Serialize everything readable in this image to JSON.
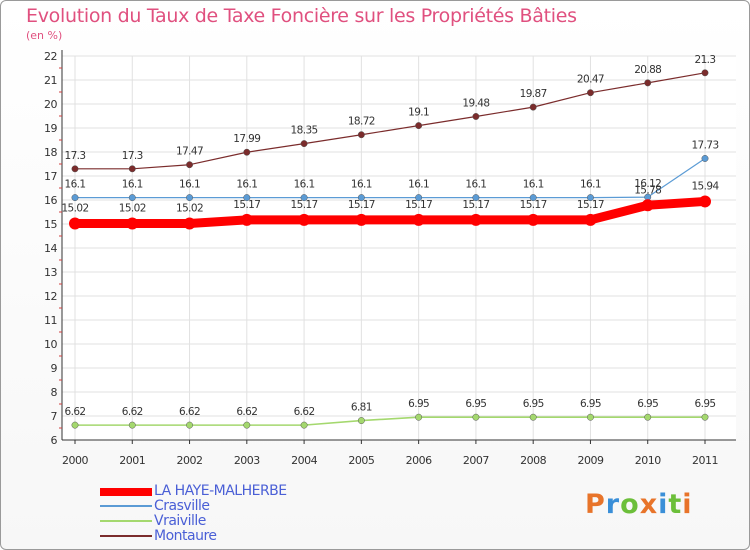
{
  "header": {
    "title": "Evolution du Taux de Taxe Foncière sur les Propriétés Bâties",
    "subtitle": "(en %)"
  },
  "logo": {
    "text": "Proxiti",
    "colors": [
      "#e8742a",
      "#3a8fd8",
      "#6cbf3a",
      "#e8742a",
      "#3a8fd8",
      "#6cbf3a",
      "#e8742a"
    ]
  },
  "chart_data": {
    "type": "line",
    "title": "Evolution du Taux de Taxe Foncière sur les Propriétés Bâties",
    "ylabel": "(en %)",
    "xlabel": "",
    "x": [
      "2000",
      "2001",
      "2002",
      "2003",
      "2004",
      "2005",
      "2006",
      "2007",
      "2008",
      "2009",
      "2010",
      "2011"
    ],
    "ylim": [
      6,
      22
    ],
    "yticks": [
      6,
      7,
      8,
      9,
      10,
      11,
      12,
      13,
      14,
      15,
      16,
      17,
      18,
      19,
      20,
      21,
      22
    ],
    "grid": true,
    "legend": "bottom-left",
    "series": [
      {
        "name": "LA HAYE-MALHERBE",
        "color": "#ff0000",
        "values": [
          15.02,
          15.02,
          15.02,
          15.17,
          15.17,
          15.17,
          15.17,
          15.17,
          15.17,
          15.17,
          15.78,
          15.94
        ],
        "labels": [
          "15.02",
          "15.02",
          "15.02",
          "15.17",
          "15.17",
          "15.17",
          "15.17",
          "15.17",
          "15.17",
          "15.17",
          "15.78",
          "15.94"
        ]
      },
      {
        "name": "Crasville",
        "color": "#5b9bd5",
        "values": [
          16.1,
          16.1,
          16.1,
          16.1,
          16.1,
          16.1,
          16.1,
          16.1,
          16.1,
          16.1,
          16.12,
          17.73
        ],
        "labels": [
          "16.1",
          "16.1",
          "16.1",
          "16.1",
          "16.1",
          "16.1",
          "16.1",
          "16.1",
          "16.1",
          "16.1",
          "16.12",
          "17.73"
        ]
      },
      {
        "name": "Vraiville",
        "color": "#a4d86e",
        "values": [
          6.62,
          6.62,
          6.62,
          6.62,
          6.62,
          6.81,
          6.95,
          6.95,
          6.95,
          6.95,
          6.95,
          6.95
        ],
        "labels": [
          "6.62",
          "6.62",
          "6.62",
          "6.62",
          "6.62",
          "6.81",
          "6.95",
          "6.95",
          "6.95",
          "6.95",
          "6.95",
          "6.95"
        ]
      },
      {
        "name": "Montaure",
        "color": "#7b2c2c",
        "values": [
          17.3,
          17.3,
          17.47,
          17.99,
          18.35,
          18.72,
          19.1,
          19.48,
          19.87,
          20.47,
          20.88,
          21.3
        ],
        "labels": [
          "17.3",
          "17.3",
          "17.47",
          "17.99",
          "18.35",
          "18.72",
          "19.1",
          "19.48",
          "19.87",
          "20.47",
          "20.88",
          "21.3"
        ]
      }
    ]
  }
}
